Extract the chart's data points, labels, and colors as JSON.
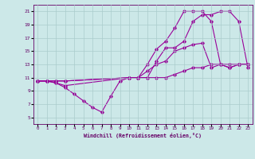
{
  "xlabel": "Windchill (Refroidissement éolien,°C)",
  "background_color": "#cce8e8",
  "grid_color": "#aacccc",
  "line_color": "#990099",
  "xlim": [
    -0.5,
    23.5
  ],
  "ylim": [
    4,
    22
  ],
  "xticks": [
    0,
    1,
    2,
    3,
    4,
    5,
    6,
    7,
    8,
    9,
    10,
    11,
    12,
    13,
    14,
    15,
    16,
    17,
    18,
    19,
    20,
    21,
    22,
    23
  ],
  "yticks": [
    5,
    7,
    9,
    11,
    13,
    15,
    17,
    19,
    21
  ],
  "line1_x": [
    0,
    1,
    2,
    3,
    10,
    11,
    12,
    13,
    14,
    15,
    16,
    17,
    18,
    19,
    20,
    21,
    22,
    23
  ],
  "line1_y": [
    10.5,
    10.5,
    10.5,
    10.5,
    11.0,
    11.0,
    13.0,
    15.3,
    16.5,
    18.5,
    21.0,
    21.0,
    21.0,
    19.5,
    13.0,
    12.5,
    13.0,
    13.0
  ],
  "line2_x": [
    0,
    1,
    2,
    3,
    10,
    11,
    12,
    13,
    14,
    15,
    16,
    17,
    18,
    19,
    20,
    21,
    22,
    23
  ],
  "line2_y": [
    10.5,
    10.5,
    10.2,
    9.8,
    11.0,
    11.0,
    11.0,
    13.5,
    15.5,
    15.5,
    16.5,
    19.5,
    20.5,
    20.5,
    21.0,
    21.0,
    19.5,
    12.5
  ],
  "line3_x": [
    0,
    1,
    2,
    3,
    4,
    5,
    6,
    7,
    8,
    9,
    10,
    11,
    12,
    13,
    14,
    15,
    16,
    17,
    18,
    19,
    20,
    21,
    22,
    23
  ],
  "line3_y": [
    10.5,
    10.5,
    10.2,
    9.5,
    8.5,
    7.5,
    6.5,
    5.8,
    8.2,
    10.5,
    11.0,
    11.0,
    12.0,
    13.0,
    13.5,
    15.0,
    15.5,
    16.0,
    16.2,
    12.5,
    13.0,
    12.5,
    13.0,
    13.0
  ],
  "line4_x": [
    0,
    1,
    2,
    3,
    10,
    11,
    12,
    13,
    14,
    15,
    16,
    17,
    18,
    19,
    20,
    21,
    22,
    23
  ],
  "line4_y": [
    10.5,
    10.5,
    10.5,
    10.5,
    11.0,
    11.0,
    11.0,
    11.0,
    11.0,
    11.5,
    12.0,
    12.5,
    12.5,
    13.0,
    13.0,
    13.0,
    13.0,
    13.0
  ]
}
